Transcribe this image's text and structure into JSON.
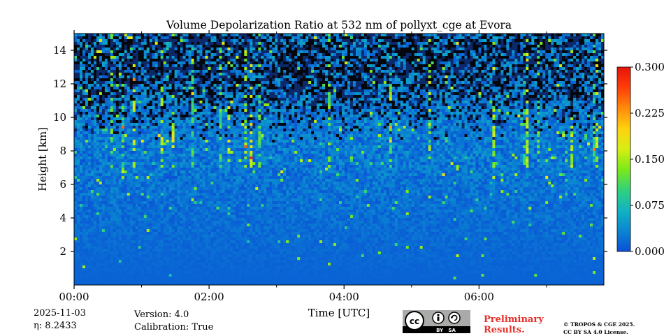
{
  "chart_data": {
    "type": "heatmap",
    "title": "Volume Depolarization Ratio at 532 nm of pollyxt_cge at Evora",
    "xlabel": "Time [UTC]",
    "ylabel": "Height [km]",
    "x_range_hours": [
      0,
      7.85
    ],
    "x_ticks": [
      {
        "value": 0,
        "label": "00:00"
      },
      {
        "value": 2,
        "label": "02:00"
      },
      {
        "value": 4,
        "label": "04:00"
      },
      {
        "value": 6,
        "label": "06:00"
      }
    ],
    "x_minor_ticks": [
      1,
      3,
      5,
      7
    ],
    "ylim": [
      0,
      15
    ],
    "y_ticks": [
      2,
      4,
      6,
      8,
      10,
      12,
      14
    ],
    "colorbar": {
      "range": [
        0.0,
        0.3
      ],
      "ticks": [
        "0.300",
        "0.225",
        "0.150",
        "0.075",
        "0.000"
      ],
      "tick_values": [
        0.3,
        0.225,
        0.15,
        0.075,
        0.0
      ],
      "colormap": [
        "#0a4fd6",
        "#0a86d2",
        "#11b3c2",
        "#31d27c",
        "#7ce81a",
        "#d6ee14",
        "#ffd10f",
        "#ff8a0a",
        "#ff3d0a",
        "#e8140a"
      ]
    },
    "description": "Low depolarization (0.01-0.03) near the ground rising noisily with height; above ~9 km the signal is dominated by noise (dark/sparse pixels) with vertical streaks of elevated values around 0.1-0.15."
  },
  "info": {
    "date": "2025-11-03",
    "eta": "η: 8.2433",
    "version": "Version: 4.0",
    "calibration": "Calibration: True"
  },
  "footer": {
    "cc_label": "BY   SA",
    "preliminary_line1": "Preliminary",
    "preliminary_line2": "Results.",
    "license_line1": "© TROPOS & CGE 2025.",
    "license_line2": "CC BY SA 4.0 License."
  }
}
